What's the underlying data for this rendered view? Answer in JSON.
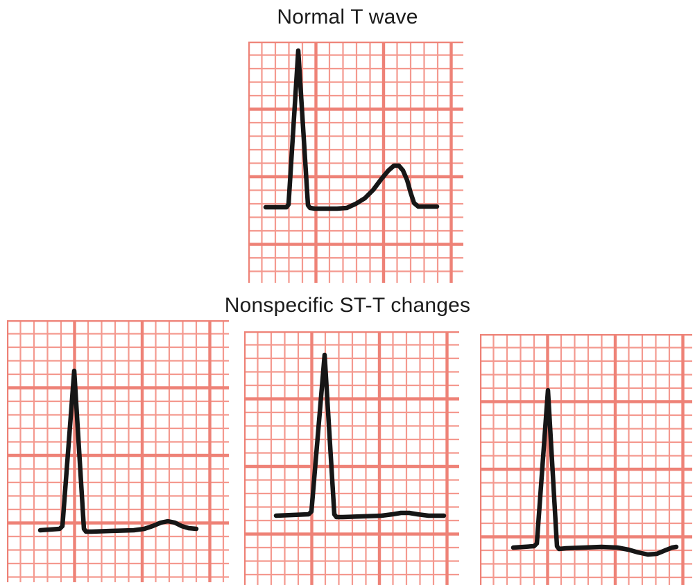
{
  "figure": {
    "colors": {
      "grid_minor": "#f4998f",
      "grid_major": "#ee8277",
      "trace": "#161616",
      "title": "#1b1b1b",
      "background": "#ffffff"
    },
    "top": {
      "title": "Normal T wave",
      "panels": [
        {
          "name": "normal-t-wave-strip",
          "description": "Tall narrow QRS complex followed by a smooth rounded upright T wave on ECG grid paper",
          "waveform": [
            [
              25,
              239
            ],
            [
              55,
              239
            ],
            [
              58,
              235
            ],
            [
              72,
              13
            ],
            [
              86,
              236
            ],
            [
              89,
              240
            ],
            [
              96,
              241
            ],
            [
              128,
              241
            ],
            [
              142,
              240
            ],
            [
              155,
              234
            ],
            [
              168,
              226
            ],
            [
              180,
              214
            ],
            [
              192,
              198
            ],
            [
              202,
              186
            ],
            [
              210,
              179
            ],
            [
              217,
              179
            ],
            [
              223,
              186
            ],
            [
              229,
              200
            ],
            [
              234,
              218
            ],
            [
              239,
              233
            ],
            [
              245,
              238
            ],
            [
              255,
              238
            ],
            [
              272,
              238
            ]
          ]
        }
      ]
    },
    "bottom": {
      "title": "Nonspecific ST-T changes",
      "panels": [
        {
          "name": "nonspecific-strip-1",
          "description": "Tall QRS with low-amplitude flattened T wave",
          "waveform": [
            [
              48,
              303
            ],
            [
              76,
              301
            ],
            [
              80,
              297
            ],
            [
              97,
              73
            ],
            [
              111,
              301
            ],
            [
              114,
              305
            ],
            [
              122,
              305
            ],
            [
              150,
              304
            ],
            [
              183,
              303
            ],
            [
              198,
              301
            ],
            [
              210,
              297
            ],
            [
              222,
              292
            ],
            [
              232,
              290
            ],
            [
              242,
              292
            ],
            [
              252,
              297
            ],
            [
              262,
              300
            ],
            [
              273,
              301
            ]
          ]
        },
        {
          "name": "nonspecific-strip-2",
          "description": "Tall QRS with nearly flat T wave",
          "waveform": [
            [
              46,
              266
            ],
            [
              93,
              264
            ],
            [
              97,
              260
            ],
            [
              116,
              34
            ],
            [
              130,
              264
            ],
            [
              133,
              268
            ],
            [
              142,
              268
            ],
            [
              170,
              267
            ],
            [
              198,
              266
            ],
            [
              214,
              264
            ],
            [
              226,
              262
            ],
            [
              238,
              262
            ],
            [
              250,
              264
            ],
            [
              266,
              266
            ],
            [
              288,
              266
            ]
          ]
        },
        {
          "name": "nonspecific-strip-3",
          "description": "Tall QRS with shallow inverted T wave",
          "waveform": [
            [
              48,
              308
            ],
            [
              78,
              306
            ],
            [
              82,
              302
            ],
            [
              98,
              81
            ],
            [
              111,
              306
            ],
            [
              114,
              310
            ],
            [
              124,
              309
            ],
            [
              150,
              308
            ],
            [
              175,
              307
            ],
            [
              198,
              308
            ],
            [
              214,
              311
            ],
            [
              228,
              315
            ],
            [
              242,
              318
            ],
            [
              255,
              317
            ],
            [
              267,
              312
            ],
            [
              277,
              308
            ],
            [
              283,
              307
            ]
          ]
        }
      ]
    }
  }
}
